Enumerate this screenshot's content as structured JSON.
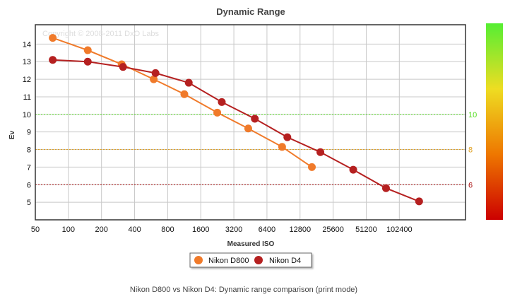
{
  "chart_data": {
    "type": "line",
    "title": "Dynamic Range",
    "xlabel": "Measured ISO",
    "ylabel": "Ev",
    "x_scale": "log2",
    "x_ticks": [
      50,
      100,
      200,
      400,
      800,
      1600,
      3200,
      6400,
      12800,
      25600,
      51200,
      102400
    ],
    "x_tick_labels": [
      "50",
      "100",
      "200",
      "400",
      "800",
      "1600",
      "3200",
      "6400",
      "12800",
      "25600",
      "51200",
      "102400"
    ],
    "xlim": [
      50,
      409600
    ],
    "y_ticks": [
      5,
      6,
      7,
      8,
      9,
      10,
      11,
      12,
      13,
      14
    ],
    "ylim": [
      4,
      15.1
    ],
    "grid": true,
    "watermark": "Copyright © 2008-2011 DxO Labs",
    "reference_lines": [
      {
        "value": 10,
        "label": "10",
        "color": "#55dd22"
      },
      {
        "value": 8,
        "label": "8",
        "color": "#e0a020"
      },
      {
        "value": 6,
        "label": "6",
        "color": "#aa1111"
      }
    ],
    "colorbar": {
      "colors": [
        "#cc0000",
        "#ee7700",
        "#eedd22",
        "#55ee33"
      ]
    },
    "series": [
      {
        "name": "Nikon D800",
        "color": "#f07a2a",
        "x": [
          72,
          150,
          305,
          597,
          1134,
          2260,
          4325,
          8790,
          16400
        ],
        "y": [
          14.35,
          13.65,
          12.85,
          12.0,
          11.15,
          10.1,
          9.2,
          8.15,
          7.0
        ]
      },
      {
        "name": "Nikon D4",
        "color": "#b52020",
        "x": [
          72,
          150,
          314,
          620,
          1244,
          2485,
          4965,
          9810,
          19600,
          39000,
          77500,
          155000
        ],
        "y": [
          13.1,
          13.0,
          12.7,
          12.35,
          11.8,
          10.7,
          9.75,
          8.7,
          7.85,
          6.85,
          5.8,
          5.05
        ]
      }
    ],
    "legend": [
      "Nikon D800",
      "Nikon D4"
    ]
  },
  "caption": "Nikon D800 vs Nikon D4: Dynamic range comparison (print mode)"
}
